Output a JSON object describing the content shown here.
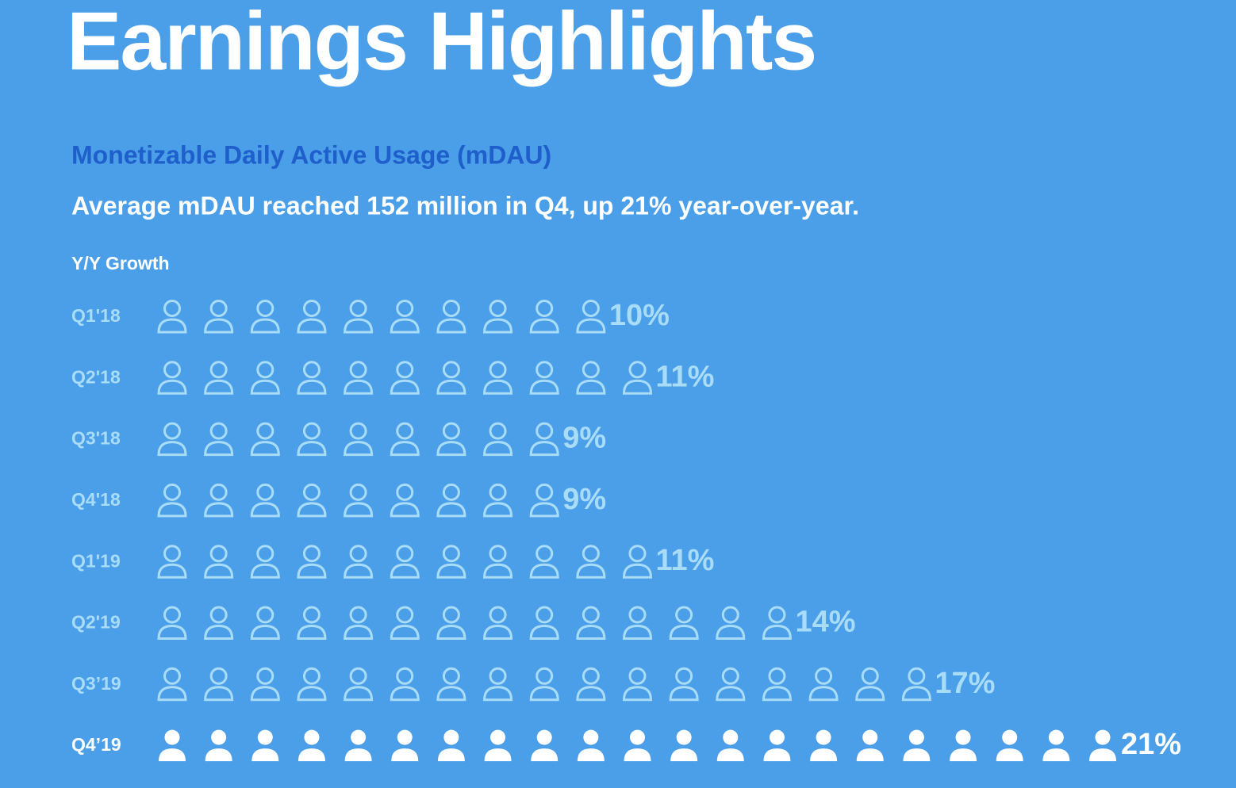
{
  "chart_data": {
    "type": "pictogram",
    "title": "Earnings Highlights",
    "subtitle": "Monetizable Daily Active Usage (mDAU)",
    "description": "Average mDAU reached 152 million in Q4, up 21% year-over-year.",
    "axis_label": "Y/Y Growth",
    "categories": [
      "Q1'18",
      "Q2'18",
      "Q3'18",
      "Q4'18",
      "Q1'19",
      "Q2'19",
      "Q3’19",
      "Q4’19"
    ],
    "values": [
      10,
      11,
      9,
      9,
      11,
      14,
      17,
      21
    ],
    "value_labels": [
      "10%",
      "11%",
      "9%",
      "9%",
      "11%",
      "14%",
      "17%",
      "21%"
    ],
    "colors": [
      "#a9dcf6",
      "#a9dcf6",
      "#a9dcf6",
      "#a9dcf6",
      "#a9dcf6",
      "#a9dcf6",
      "#a9dcf6",
      "#ffffff"
    ],
    "icon_styles": [
      "outline",
      "outline",
      "outline",
      "outline",
      "outline",
      "outline",
      "outline",
      "filled"
    ]
  }
}
